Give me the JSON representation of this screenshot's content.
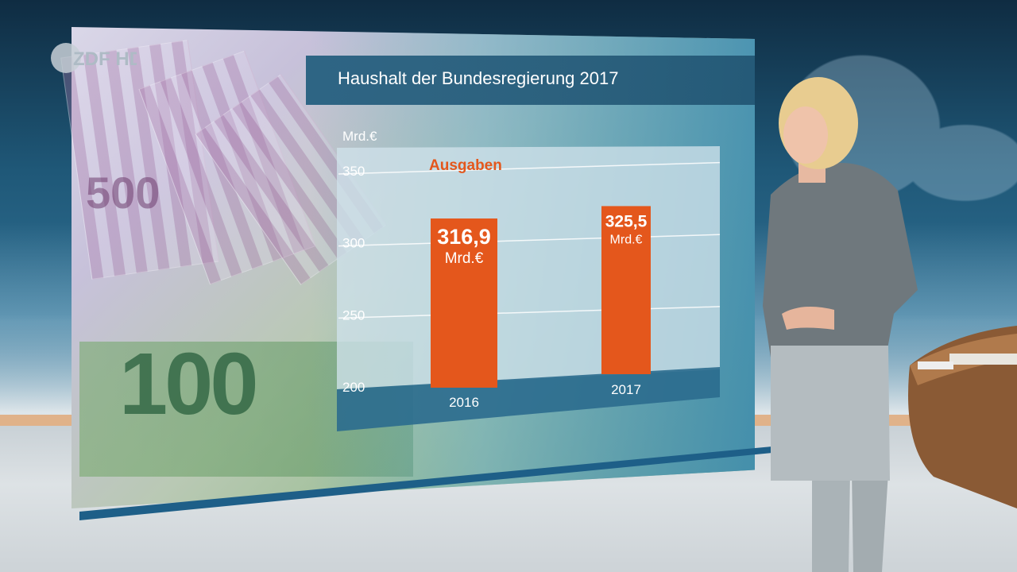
{
  "broadcast": {
    "logo_text": "ZDF HD"
  },
  "chart_data": {
    "type": "bar",
    "title": "Haushalt der Bundesregierung 2017",
    "ylabel": "Mrd.€",
    "xlabel": "",
    "ylim": [
      200,
      350
    ],
    "yticks": [
      200,
      250,
      300,
      350
    ],
    "grid": true,
    "categories": [
      "2016",
      "2017"
    ],
    "series": [
      {
        "name": "Ausgaben",
        "values": [
          316.9,
          325.5
        ],
        "value_labels": [
          "316,9",
          "325,5"
        ],
        "unit_label": "Mrd.€"
      }
    ],
    "colors": {
      "bar": "#e4571c",
      "panel": "#cfe2ea",
      "series_label": "#e4571c"
    }
  }
}
